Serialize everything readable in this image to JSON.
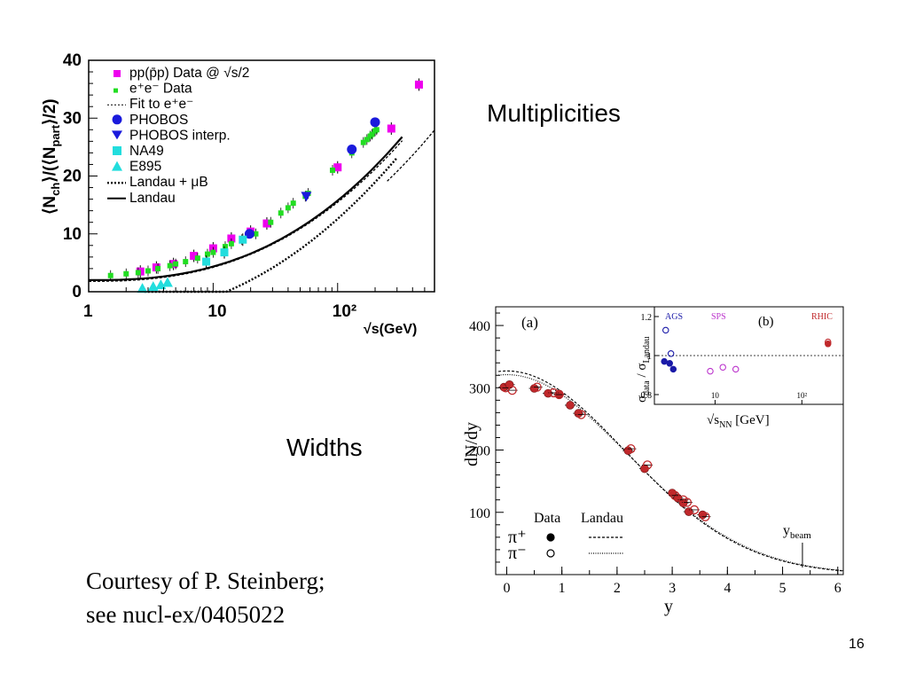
{
  "slide": {
    "multiplicities_label": "Multiplicities",
    "widths_label": "Widths",
    "courtesy_line1": "Courtesy of P. Steinberg;",
    "courtesy_line2": "see nucl-ex/0405022",
    "page_number": "16"
  },
  "chart_data": [
    {
      "type": "scatter",
      "xscale": "log",
      "xlim": [
        1,
        600
      ],
      "ylim": [
        0,
        40
      ],
      "xtick_labels": [
        "1",
        "10",
        "10²"
      ],
      "ytick_labels": [
        "0",
        "10",
        "20",
        "30",
        "40"
      ],
      "xlabel": "√s(GeV)",
      "ylabel": "⟨Nch⟩/(⟨Npart⟩/2)",
      "legend_position": "top-left",
      "legend": [
        "pp(p̄p) Data @ √s/2",
        "e⁺e⁻ Data",
        "Fit to e⁺e⁻",
        "PHOBOS",
        "PHOBOS interp.",
        "NA49",
        "E895",
        "Landau + μB",
        "Landau"
      ],
      "series": [
        {
          "name": "pp(p̄p) Data @ √s/2",
          "color": "#ee00ee",
          "marker": "square",
          "points": [
            [
              2.6,
              3.5
            ],
            [
              3.5,
              4.2
            ],
            [
              4.8,
              4.8
            ],
            [
              7,
              6.2
            ],
            [
              10,
              7.5
            ],
            [
              14,
              9.2
            ],
            [
              20,
              10.4
            ],
            [
              27,
              11.8
            ],
            [
              100,
              21.5
            ],
            [
              270,
              28.2
            ],
            [
              450,
              35.8
            ]
          ]
        },
        {
          "name": "e⁺e⁻ Data",
          "color": "#22dd22",
          "marker": "dot",
          "points": [
            [
              1.5,
              2.8
            ],
            [
              2,
              3.1
            ],
            [
              2.5,
              3.3
            ],
            [
              3,
              3.6
            ],
            [
              3.6,
              4.0
            ],
            [
              4.5,
              4.5
            ],
            [
              5,
              4.8
            ],
            [
              6,
              5.2
            ],
            [
              7.5,
              5.8
            ],
            [
              9,
              6.5
            ],
            [
              10,
              6.8
            ],
            [
              12.5,
              7.8
            ],
            [
              14,
              8.3
            ],
            [
              17,
              9.0
            ],
            [
              22,
              10.0
            ],
            [
              29,
              12.0
            ],
            [
              35,
              13.6
            ],
            [
              40,
              14.5
            ],
            [
              44,
              15.3
            ],
            [
              55,
              16.5
            ],
            [
              58,
              17.0
            ],
            [
              91,
              21.0
            ],
            [
              130,
              24.0
            ],
            [
              161,
              25.8
            ],
            [
              172,
              26.3
            ],
            [
              183,
              26.9
            ],
            [
              189,
              27.2
            ],
            [
              200,
              27.8
            ],
            [
              206,
              28.0
            ]
          ]
        },
        {
          "name": "PHOBOS",
          "color": "#1a1adc",
          "marker": "circle",
          "points": [
            [
              19.6,
              10.0
            ],
            [
              130,
              24.6
            ],
            [
              200,
              29.3
            ]
          ]
        },
        {
          "name": "PHOBOS interp.",
          "color": "#1a1adc",
          "marker": "triangle-down",
          "points": [
            [
              56,
              16.5
            ]
          ]
        },
        {
          "name": "NA49",
          "color": "#22dddd",
          "marker": "square",
          "points": [
            [
              8.8,
              5.2
            ],
            [
              12.3,
              6.8
            ],
            [
              17.3,
              9.0
            ]
          ]
        },
        {
          "name": "E895",
          "color": "#22dddd",
          "marker": "triangle-up",
          "points": [
            [
              2.7,
              0.6
            ],
            [
              3.3,
              0.9
            ],
            [
              3.8,
              1.2
            ],
            [
              4.3,
              1.6
            ]
          ]
        }
      ],
      "curves": [
        {
          "name": "Fit to e⁺e⁻",
          "style": "dashed"
        },
        {
          "name": "Landau + μB",
          "style": "dash-dot"
        },
        {
          "name": "Landau",
          "style": "solid"
        }
      ]
    },
    {
      "type": "scatter",
      "panel_label": "(a)",
      "xlim": [
        -0.2,
        6.1
      ],
      "ylim": [
        0,
        430
      ],
      "xtick_labels": [
        "0",
        "1",
        "2",
        "3",
        "4",
        "5",
        "6"
      ],
      "ytick_labels": [
        "100",
        "200",
        "300",
        "400"
      ],
      "xlabel": "y",
      "ylabel": "dN/dy",
      "legend_headers": [
        "Data",
        "Landau"
      ],
      "legend_rows": [
        "π⁺",
        "π⁻"
      ],
      "annotation": "ybeam",
      "annotation_x": 5.36,
      "series": [
        {
          "name": "π⁺",
          "color": "#c0282b",
          "marker": "filled-circle",
          "points": [
            [
              -0.05,
              301
            ],
            [
              0.05,
              305
            ],
            [
              0.5,
              299
            ],
            [
              0.75,
              291
            ],
            [
              0.95,
              290
            ],
            [
              1.15,
              272
            ],
            [
              1.3,
              259
            ],
            [
              2.2,
              199
            ],
            [
              2.5,
              170
            ],
            [
              3.0,
              131
            ],
            [
              3.1,
              123
            ],
            [
              3.2,
              115
            ],
            [
              3.3,
              101
            ],
            [
              3.55,
              96
            ]
          ]
        },
        {
          "name": "π⁻",
          "color": "#c0282b",
          "marker": "open-circle",
          "points": [
            [
              -0.02,
              300
            ],
            [
              0.1,
              296
            ],
            [
              0.55,
              301
            ],
            [
              0.85,
              292
            ],
            [
              0.95,
              289
            ],
            [
              1.35,
              257
            ],
            [
              2.25,
              202
            ],
            [
              2.55,
              176
            ],
            [
              3.05,
              127
            ],
            [
              3.2,
              120
            ],
            [
              3.27,
              116
            ],
            [
              3.4,
              104
            ],
            [
              3.6,
              93
            ]
          ]
        }
      ]
    },
    {
      "type": "scatter",
      "panel_label": "(b)",
      "xscale": "log",
      "xlim": [
        2,
        300
      ],
      "ylim": [
        0.75,
        1.25
      ],
      "ytick_labels": [
        "0.8",
        "1",
        "1.2"
      ],
      "xtick_labels": [
        "10",
        "10²"
      ],
      "xlabel": "√sNN [GeV]",
      "ylabel": "σdata / σLandau",
      "reference_line": 1.0,
      "region_labels": [
        "AGS",
        "SPS",
        "RHIC"
      ],
      "region_colors": [
        "#1a1aa8",
        "#bb33cc",
        "#c0282b"
      ],
      "series": [
        {
          "name": "AGS",
          "color": "#1a1aa8",
          "points": [
            [
              2.6,
              0.97
            ],
            [
              3.0,
              0.96
            ],
            [
              3.3,
              0.93
            ],
            [
              2.7,
              1.13
            ],
            [
              3.1,
              1.01
            ]
          ]
        },
        {
          "name": "SPS",
          "color": "#bb33cc",
          "points": [
            [
              8.8,
              0.92
            ],
            [
              12.3,
              0.94
            ],
            [
              17.3,
              0.93
            ]
          ]
        },
        {
          "name": "RHIC",
          "color": "#c0282b",
          "points": [
            [
              200,
              1.06
            ],
            [
              200,
              1.07
            ]
          ]
        }
      ]
    }
  ]
}
